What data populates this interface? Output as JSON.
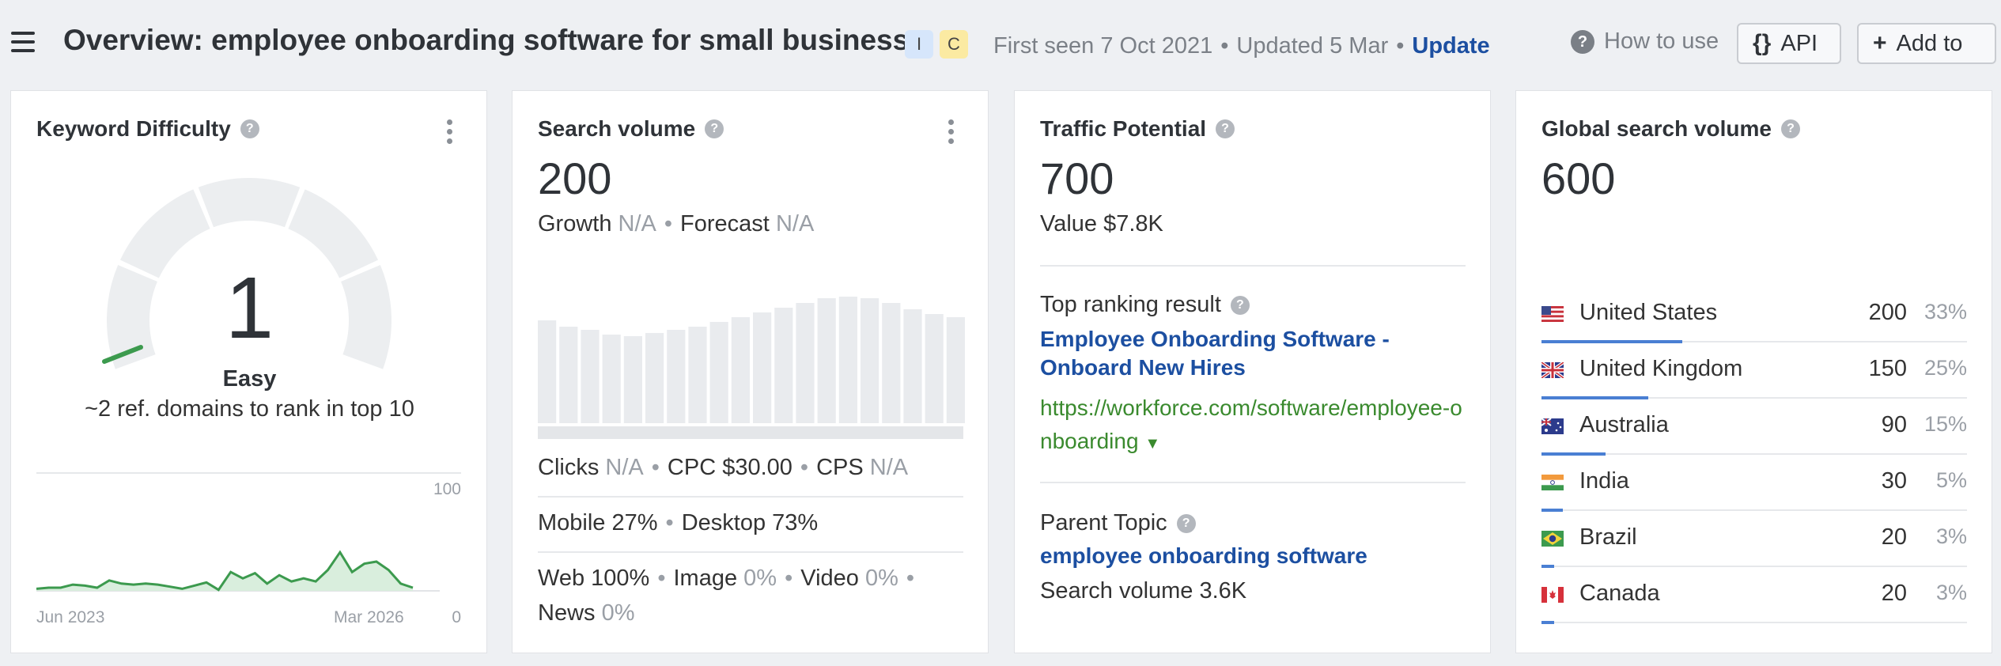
{
  "header": {
    "title": "Overview: employee onboarding software for small business",
    "intent_badges": [
      "I",
      "C"
    ],
    "first_seen": "First seen 7 Oct 2021",
    "updated": "Updated 5 Mar",
    "update_link": "Update",
    "how_to_use": "How to use",
    "api_label": "API",
    "add_to_label": "Add to"
  },
  "keyword_difficulty": {
    "title": "Keyword Difficulty",
    "value": "1",
    "value_fraction": 0.01,
    "label": "Easy",
    "subtitle": "~2 ref. domains to rank in top 10",
    "accent_color": "#3c9a4e",
    "chart": {
      "y_max_label": "100",
      "y_min_label": "0",
      "x_start_label": "Jun 2023",
      "x_end_label": "Mar 2026",
      "values": [
        2,
        3,
        3,
        6,
        5,
        3,
        10,
        7,
        6,
        7,
        6,
        4,
        2,
        5,
        8,
        1,
        18,
        12,
        17,
        7,
        15,
        9,
        12,
        9,
        20,
        37,
        18,
        26,
        28,
        20,
        7,
        3
      ]
    }
  },
  "search_volume": {
    "title": "Search volume",
    "value": "200",
    "growth_label": "Growth",
    "growth_value": "N/A",
    "forecast_label": "Forecast",
    "forecast_value": "N/A",
    "monthly_bars": [
      65,
      61,
      59,
      56,
      55,
      57,
      59,
      61,
      64,
      67,
      70,
      73,
      76,
      79,
      80,
      79,
      76,
      72,
      69,
      67
    ],
    "clicks_label": "Clicks",
    "clicks_value": "N/A",
    "cpc_label": "CPC $30.00",
    "cps_label": "CPS",
    "cps_value": "N/A",
    "mobile": "Mobile 27%",
    "desktop": "Desktop 73%",
    "web": "Web 100%",
    "image_label": "Image",
    "image_value": "0%",
    "video_label": "Video",
    "video_value": "0%",
    "news_label": "News",
    "news_value": "0%"
  },
  "traffic_potential": {
    "title": "Traffic Potential",
    "value": "700",
    "value_usd": "Value $7.8K",
    "top_result_label": "Top ranking result",
    "top_result_title": "Employee Onboarding Software - Onboard New Hires",
    "top_result_url": "https://workforce.com/software/employee-onboarding",
    "parent_topic_label": "Parent Topic",
    "parent_topic": "employee onboarding software",
    "parent_volume": "Search volume 3.6K"
  },
  "global_volume": {
    "title": "Global search volume",
    "value": "600",
    "bar_color": "#4a7fd3",
    "countries": [
      {
        "name": "United States",
        "volume": "200",
        "percent": "33%",
        "share": 0.33,
        "flag": "us-flag"
      },
      {
        "name": "United Kingdom",
        "volume": "150",
        "percent": "25%",
        "share": 0.25,
        "flag": "uk-flag"
      },
      {
        "name": "Australia",
        "volume": "90",
        "percent": "15%",
        "share": 0.15,
        "flag": "au-flag"
      },
      {
        "name": "India",
        "volume": "30",
        "percent": "5%",
        "share": 0.05,
        "flag": "in-flag"
      },
      {
        "name": "Brazil",
        "volume": "20",
        "percent": "3%",
        "share": 0.03,
        "flag": "br-flag"
      },
      {
        "name": "Canada",
        "volume": "20",
        "percent": "3%",
        "share": 0.03,
        "flag": "ca-flag"
      }
    ]
  }
}
